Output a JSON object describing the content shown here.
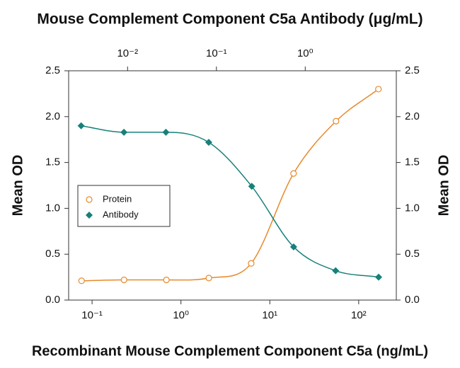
{
  "chart_data": {
    "type": "scatter",
    "title": "Mouse Complement Component C5a Antibody (μg/mL)",
    "x_label": "Recombinant Mouse Complement Component C5a (ng/mL)",
    "y_label": "Mean OD",
    "y2_label": "Mean OD",
    "xscale": "log",
    "x2scale": "log",
    "xlim": [
      0.0545,
      265
    ],
    "xticks": [
      {
        "value": 0.1,
        "label": "10⁻¹"
      },
      {
        "value": 1,
        "label": "10⁰"
      },
      {
        "value": 10,
        "label": "10¹"
      },
      {
        "value": 100,
        "label": "10²"
      }
    ],
    "x2lim": [
      0.00217,
      10.6
    ],
    "x2ticks": [
      {
        "value": 0.01,
        "label": "10⁻²"
      },
      {
        "value": 0.1,
        "label": "10⁻¹"
      },
      {
        "value": 1,
        "label": "10⁰"
      }
    ],
    "ylim": [
      0,
      2.5
    ],
    "yticks": [
      {
        "value": 0,
        "label": "0.0"
      },
      0.5,
      {
        "value": 1,
        "label": "1.0"
      },
      1.5,
      {
        "value": 2,
        "label": "2.0"
      },
      2.5
    ],
    "y2lim": [
      0,
      2.5
    ],
    "y2ticks": [
      {
        "value": 0,
        "label": "0.0"
      },
      0.5,
      {
        "value": 1,
        "label": "1.0"
      },
      1.5,
      {
        "value": 2,
        "label": "2.0"
      },
      2.5
    ],
    "legend": "center left",
    "series": [
      {
        "name": "Protein",
        "color": "#e8892a",
        "marker": "open-circle",
        "axis": "x",
        "x": [
          0.0762,
          0.229,
          0.686,
          2.06,
          6.17,
          18.5,
          55.6,
          166.7
        ],
        "values": [
          0.21,
          0.22,
          0.22,
          0.24,
          0.4,
          1.38,
          1.95,
          2.3
        ]
      },
      {
        "name": "Antibody",
        "color": "#17807a",
        "marker": "diamond",
        "axis": "x2",
        "x": [
          0.003,
          0.0091,
          0.027,
          0.082,
          0.25,
          0.74,
          2.2,
          6.7
        ],
        "values": [
          1.9,
          1.83,
          1.83,
          1.72,
          1.24,
          0.58,
          0.32,
          0.25
        ]
      }
    ]
  }
}
